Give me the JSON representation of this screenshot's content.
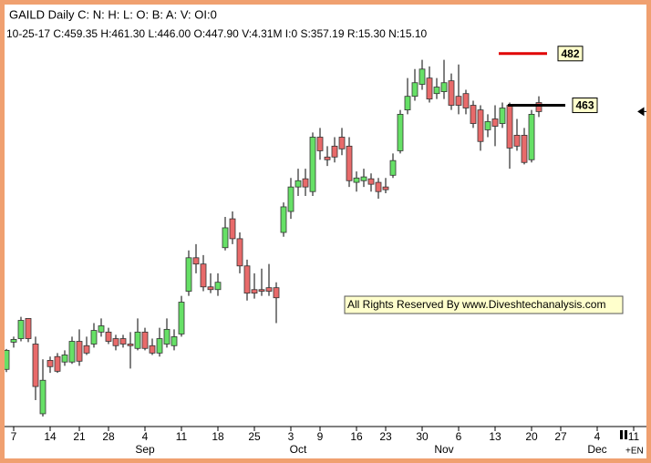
{
  "chart_data": {
    "type": "candlestick",
    "title": "GAILD Daily C: N: H: L: O: B: A: V: OI:0",
    "subtitle": "10-25-17  C:459.35  H:461.30  L:446.00  O:447.90  V:4.31M  I:0  S:357.19  R:15.30  N:15.10",
    "annotation": "All Rights Reserved By www.Diveshtechanalysis.com",
    "corner_label": "+EN",
    "up_color": "#66e066",
    "down_color": "#e86a6a",
    "open": [
      366,
      376,
      377.3,
      384.7,
      375.3,
      349.7,
      369.3,
      370.7,
      368.7,
      368.7,
      376.3,
      374.7,
      375.3,
      379.7,
      379.7,
      377.3,
      377.3,
      375.3,
      373.7,
      379.7,
      374.7,
      372,
      375.3,
      374.7,
      379,
      394.7,
      407,
      404.7,
      396.3,
      395.3,
      410.7,
      421.3,
      414,
      404,
      395.3,
      395.3,
      396,
      396,
      416.3,
      424,
      433,
      436,
      431.3,
      451.3,
      444,
      448,
      451.3,
      448,
      434.7,
      435.3,
      436,
      434.7,
      433,
      437.3,
      446.3,
      461.3,
      466.3,
      470.7,
      473,
      467.3,
      468,
      472,
      466.3,
      467.3,
      463,
      461.3,
      454,
      458,
      456.3,
      463,
      452,
      452,
      443,
      464
    ],
    "high": [
      373.5,
      378,
      385.3,
      384.7,
      378,
      369.7,
      370.7,
      372,
      373,
      378,
      380.7,
      378,
      383,
      384.7,
      381.3,
      378.7,
      378.7,
      379.7,
      384.7,
      381.3,
      377.3,
      381.3,
      384.7,
      380.7,
      393,
      409.7,
      412,
      408,
      401.3,
      401.3,
      422,
      424,
      416.3,
      406.3,
      401.3,
      403,
      404.7,
      398,
      427.3,
      436.3,
      439.7,
      439.7,
      453,
      454.7,
      448,
      451.3,
      454.7,
      451.3,
      438.7,
      439.7,
      438,
      436.3,
      436.3,
      445.3,
      461.3,
      473,
      476.3,
      479.7,
      477.3,
      473,
      479.7,
      474.7,
      478,
      468.7,
      464.7,
      463,
      459.7,
      463,
      464,
      464,
      458,
      454.7,
      461.3,
      466.3
    ],
    "low": [
      365,
      374,
      376.3,
      376,
      354.7,
      348.7,
      364.7,
      364.7,
      367.3,
      368,
      367.3,
      371.3,
      374,
      378,
      375.3,
      373,
      374,
      366.3,
      373,
      373,
      371.3,
      370.7,
      374,
      373,
      378,
      393,
      401.3,
      394.7,
      394,
      393,
      409.7,
      412,
      401.3,
      391.3,
      392,
      393,
      393,
      383,
      414.7,
      421.3,
      429.7,
      429.7,
      429.7,
      443,
      440.7,
      442,
      444.7,
      433,
      431.3,
      433,
      431.3,
      428.7,
      430.7,
      436.3,
      445.3,
      459.7,
      464.7,
      468.7,
      464,
      465.3,
      465.3,
      461.3,
      459.7,
      459.7,
      454.7,
      446.3,
      451.3,
      448,
      454.7,
      439.7,
      446.3,
      441.3,
      442,
      458.7
    ],
    "close": [
      373,
      377,
      384,
      377.3,
      359.7,
      362,
      367,
      365.3,
      371.3,
      376.3,
      369,
      372,
      380.3,
      382,
      376.3,
      374.7,
      375.3,
      374.7,
      379.7,
      373.7,
      372,
      377.3,
      380.7,
      378,
      390.7,
      407,
      404.7,
      396.3,
      395.3,
      398,
      418,
      414,
      404,
      394,
      394,
      394.7,
      394.7,
      392.3,
      425.7,
      433,
      435.3,
      433,
      451.3,
      446.3,
      443,
      444,
      447,
      435.3,
      436.3,
      436.7,
      434,
      431.3,
      432,
      442.7,
      459.7,
      466.3,
      471.3,
      476.3,
      465.3,
      469.7,
      471.3,
      463,
      463,
      462,
      456.3,
      449.7,
      457,
      455.3,
      462,
      447.3,
      448,
      442,
      459.7,
      460.7
    ],
    "xlim": [
      -0.875,
      87.25
    ],
    "xticks": [
      {
        "value": 1,
        "label": "7"
      },
      {
        "value": 6,
        "label": "14"
      },
      {
        "value": 10,
        "label": "21"
      },
      {
        "value": 14,
        "label": "28"
      },
      {
        "value": 19,
        "label": "4"
      },
      {
        "value": 24,
        "label": "11"
      },
      {
        "value": 29,
        "label": "18"
      },
      {
        "value": 34,
        "label": "25"
      },
      {
        "value": 39,
        "label": "3"
      },
      {
        "value": 43,
        "label": "9"
      },
      {
        "value": 48,
        "label": "16"
      },
      {
        "value": 52,
        "label": "23"
      },
      {
        "value": 57,
        "label": "30"
      },
      {
        "value": 62,
        "label": "6"
      },
      {
        "value": 67,
        "label": "13"
      },
      {
        "value": 72,
        "label": "20"
      },
      {
        "value": 76,
        "label": "27"
      },
      {
        "value": 81,
        "label": "4"
      },
      {
        "value": 86,
        "label": "11"
      }
    ],
    "month_labels": [
      {
        "value": 19,
        "label": "Sep"
      },
      {
        "value": 40,
        "label": "Oct"
      },
      {
        "value": 60,
        "label": "Nov"
      },
      {
        "value": 81,
        "label": "Dec"
      }
    ],
    "ylim": [
      345,
      499
    ],
    "levels": [
      {
        "value": 482,
        "color": "#e00000"
      },
      {
        "value": 463,
        "color": "#000000"
      }
    ]
  }
}
